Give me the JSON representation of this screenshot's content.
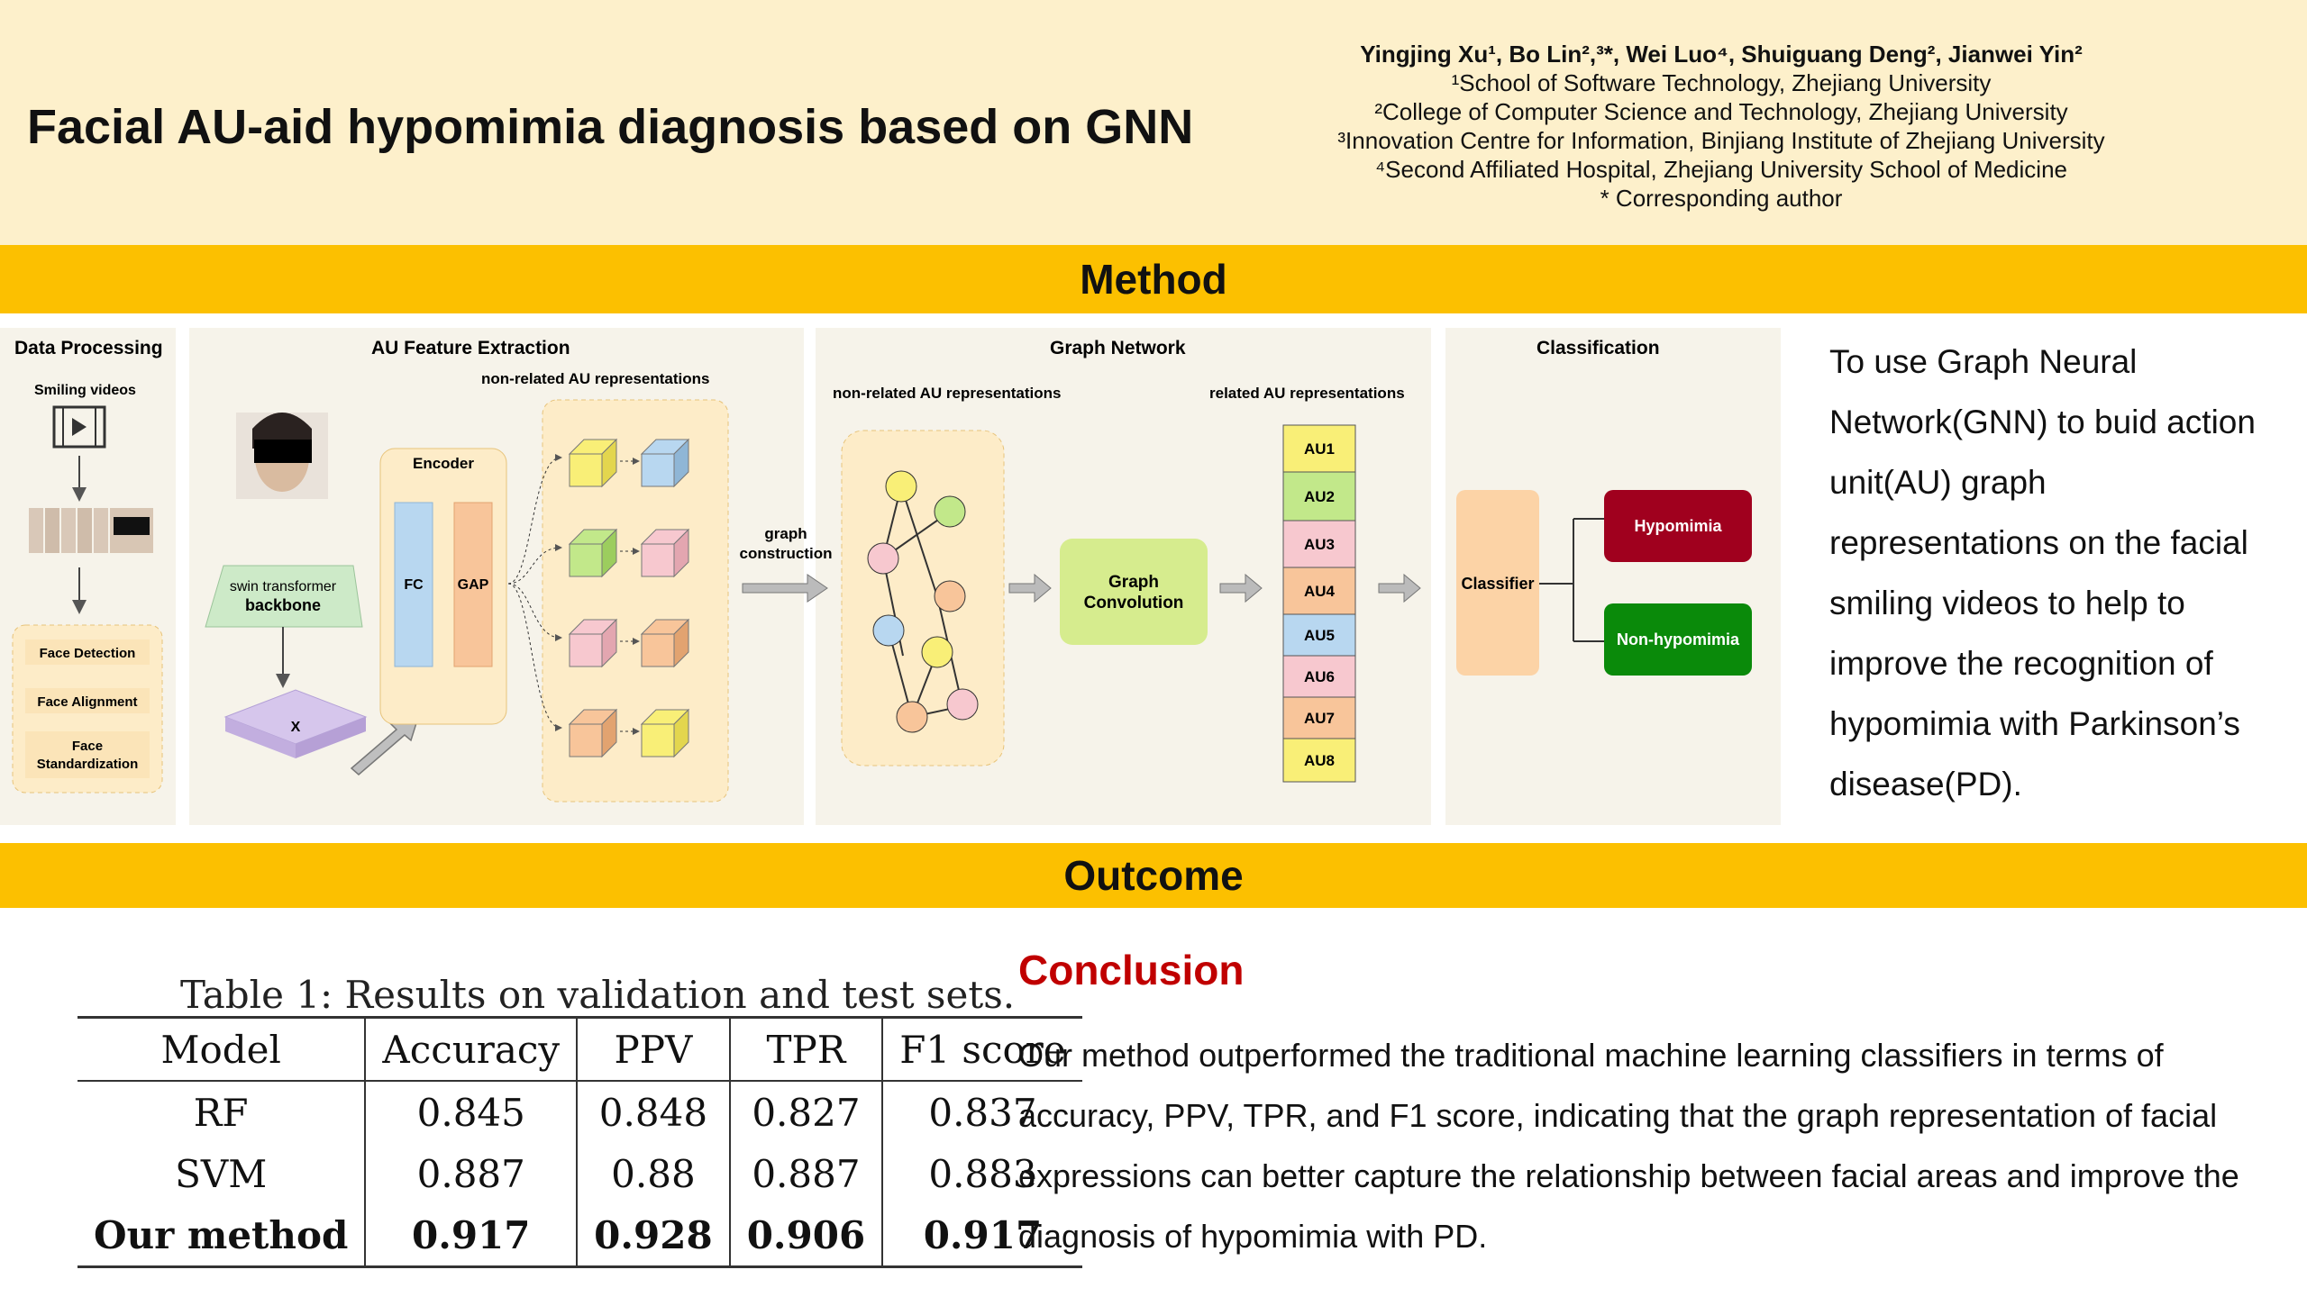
{
  "header": {
    "title": "Facial AU-aid hypomimia diagnosis based on GNN",
    "authors": "Yingjing Xu¹, Bo Lin²,³*, Wei Luo⁴, Shuiguang Deng², Jianwei Yin²",
    "affiliations": [
      "¹School of Software Technology, Zhejiang University",
      "²College of Computer Science and Technology, Zhejiang University",
      "³Innovation Centre for Information, Binjiang Institute of Zhejiang University",
      "⁴Second Affiliated Hospital, Zhejiang University School of Medicine",
      "* Corresponding author"
    ]
  },
  "method": {
    "heading": "Method",
    "description": "To use Graph Neural Network(GNN) to buid action unit(AU) graph representations on the facial smiling videos to help to improve the recognition of hypomimia with Parkinson’s disease(PD).",
    "diagram": {
      "panel_titles": [
        "Data Processing",
        "AU Feature Extraction",
        "Graph Network",
        "Classification"
      ],
      "smiling_videos": "Smiling videos",
      "steps": [
        "Face Detection",
        "Face Alignment",
        "Face Standardization"
      ],
      "backbone_line1": "swin transformer",
      "backbone_line2": "backbone",
      "x_label": "X",
      "encoder": "Encoder",
      "fc": "FC",
      "gap": "GAP",
      "nonrelated_label": "non-related AU representations",
      "graph_construction_1": "graph",
      "graph_construction_2": "construction",
      "related_label": "related AU representations",
      "graph_conv_1": "Graph",
      "graph_conv_2": "Convolution",
      "au_list": [
        "AU1",
        "AU2",
        "AU3",
        "AU4",
        "AU5",
        "AU6",
        "AU7",
        "AU8"
      ],
      "classifier": "Classifier",
      "hypomimia": "Hypomimia",
      "non_hypomimia": "Non-hypomimia",
      "colors": {
        "hypomimia": "#a0001e",
        "non_hypomimia": "#0a8a0a",
        "classifier": "#fcd3a6",
        "graph_conv": "#d6ec8e"
      }
    }
  },
  "outcome": {
    "heading": "Outcome",
    "table": {
      "caption": "Table 1: Results on validation and test sets.",
      "columns": [
        "Model",
        "Accuracy",
        "PPV",
        "TPR",
        "F1 score"
      ],
      "rows": [
        [
          "RF",
          "0.845",
          "0.848",
          "0.827",
          "0.837"
        ],
        [
          "SVM",
          "0.887",
          "0.88",
          "0.887",
          "0.883"
        ],
        [
          "Our method",
          "0.917",
          "0.928",
          "0.906",
          "0.917"
        ]
      ]
    },
    "conclusion_title": "Conclusion",
    "conclusion_text": "Our method outperformed the traditional machine learning classifiers in terms of accuracy, PPV, TPR, and F1 score, indicating that the graph representation of facial expressions can better capture the relationship between facial areas and improve the diagnosis of hypomimia with PD."
  }
}
